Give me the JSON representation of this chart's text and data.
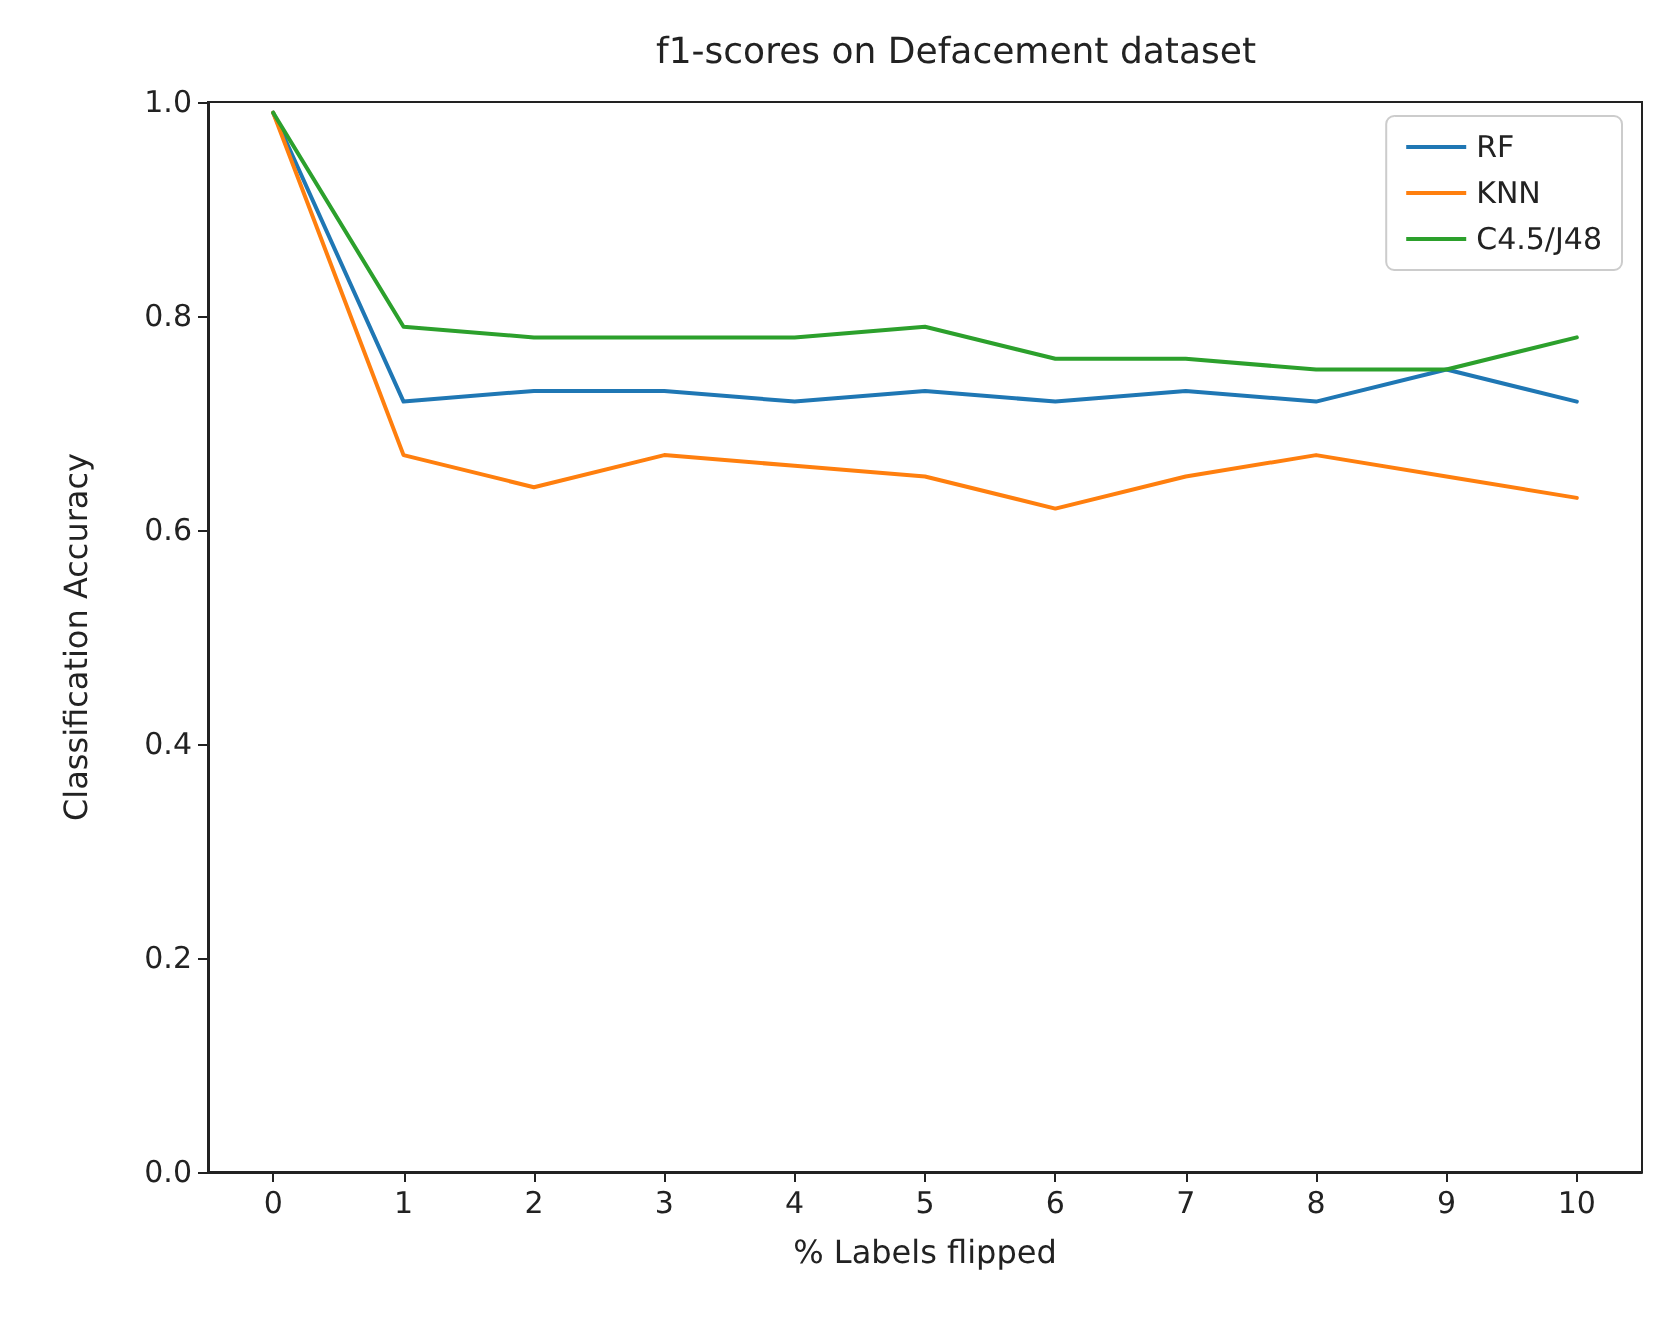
{
  "chart_data": {
    "type": "line",
    "title": "f1-scores on Defacement dataset",
    "xlabel": "% Labels flipped",
    "ylabel": "Classification Accuracy",
    "x": [
      0,
      1,
      2,
      3,
      4,
      5,
      6,
      7,
      8,
      9,
      10
    ],
    "series": [
      {
        "name": "RF",
        "color": "#1f77b4",
        "values": [
          0.99,
          0.72,
          0.73,
          0.73,
          0.72,
          0.73,
          0.72,
          0.73,
          0.72,
          0.75,
          0.72
        ]
      },
      {
        "name": "KNN",
        "color": "#ff7f0e",
        "values": [
          0.99,
          0.67,
          0.64,
          0.67,
          0.66,
          0.65,
          0.62,
          0.65,
          0.67,
          0.65,
          0.63
        ]
      },
      {
        "name": "C4.5/J48",
        "color": "#2ca02c",
        "values": [
          0.99,
          0.79,
          0.78,
          0.78,
          0.78,
          0.79,
          0.76,
          0.76,
          0.75,
          0.75,
          0.78
        ]
      }
    ],
    "xlim": [
      -0.5,
      10.5
    ],
    "xticks": [
      0,
      1,
      2,
      3,
      4,
      5,
      6,
      7,
      8,
      9,
      10
    ],
    "ylim": [
      0,
      1
    ],
    "yticks": [
      {
        "value": 0,
        "label": "0.0"
      },
      0.2,
      0.4,
      0.6,
      0.8,
      {
        "value": 1,
        "label": "1.0"
      }
    ],
    "legend": "top right",
    "marker": "none",
    "line_style": "solid"
  }
}
